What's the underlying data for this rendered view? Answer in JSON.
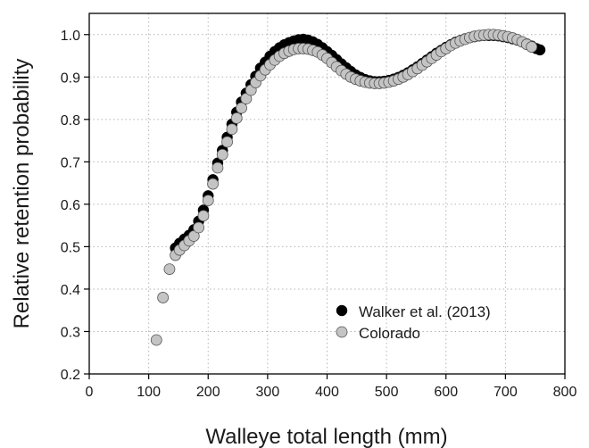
{
  "chart_data": {
    "type": "scatter",
    "xlabel": "Walleye total length (mm)",
    "ylabel": "Relative retention probability",
    "xlim": [
      0,
      800
    ],
    "ylim": [
      0.2,
      1.05
    ],
    "x_ticks": [
      "0",
      "100",
      "200",
      "300",
      "400",
      "500",
      "600",
      "700",
      "800"
    ],
    "y_ticks": [
      "0.2",
      "0.3",
      "0.4",
      "0.5",
      "0.6",
      "0.7",
      "0.8",
      "0.9",
      "1.0"
    ],
    "grid": true,
    "legend": "bottom-right",
    "series": [
      {
        "name": "Walker et al. (2013)",
        "color": "#000000",
        "x": [
          145,
          152,
          160,
          168,
          176,
          184,
          192,
          200,
          208,
          216,
          224,
          232,
          240,
          248,
          256,
          264,
          272,
          280,
          288,
          296,
          304,
          312,
          320,
          328,
          336,
          344,
          352,
          360,
          368,
          376,
          384,
          392,
          400,
          408,
          416,
          424,
          432,
          440,
          448,
          456,
          464,
          472,
          480,
          488,
          496,
          504,
          512,
          520,
          528,
          536,
          544,
          552,
          560,
          568,
          576,
          584,
          592,
          600,
          608,
          616,
          624,
          632,
          640,
          648,
          656,
          664,
          672,
          680,
          688,
          696,
          704,
          712,
          720,
          728,
          736,
          744,
          752,
          758
        ],
        "y": [
          0.497,
          0.508,
          0.518,
          0.527,
          0.54,
          0.56,
          0.586,
          0.62,
          0.658,
          0.697,
          0.727,
          0.758,
          0.789,
          0.817,
          0.841,
          0.862,
          0.882,
          0.902,
          0.921,
          0.935,
          0.949,
          0.96,
          0.969,
          0.976,
          0.981,
          0.985,
          0.988,
          0.989,
          0.987,
          0.983,
          0.977,
          0.969,
          0.96,
          0.951,
          0.941,
          0.931,
          0.922,
          0.913,
          0.905,
          0.899,
          0.894,
          0.891,
          0.889,
          0.889,
          0.89,
          0.892,
          0.895,
          0.899,
          0.904,
          0.91,
          0.917,
          0.924,
          0.932,
          0.94,
          0.948,
          0.956,
          0.963,
          0.97,
          0.976,
          0.982,
          0.986,
          0.99,
          0.993,
          0.995,
          0.997,
          0.998,
          0.998,
          0.998,
          0.997,
          0.995,
          0.993,
          0.99,
          0.987,
          0.983,
          0.978,
          0.973,
          0.967,
          0.964
        ]
      },
      {
        "name": "Colorado",
        "color": "#c4c4c4",
        "x": [
          113,
          124,
          135,
          145,
          152,
          160,
          168,
          176,
          184,
          192,
          200,
          208,
          216,
          224,
          232,
          240,
          248,
          256,
          264,
          272,
          280,
          288,
          296,
          304,
          312,
          320,
          328,
          336,
          344,
          352,
          360,
          368,
          376,
          384,
          392,
          400,
          408,
          416,
          424,
          432,
          440,
          448,
          456,
          464,
          472,
          480,
          488,
          496,
          504,
          512,
          520,
          528,
          536,
          544,
          552,
          560,
          568,
          576,
          584,
          592,
          600,
          608,
          616,
          624,
          632,
          640,
          648,
          656,
          664,
          672,
          680,
          688,
          696,
          704,
          712,
          720,
          728,
          736,
          744
        ],
        "y": [
          0.28,
          0.38,
          0.447,
          0.48,
          0.492,
          0.503,
          0.514,
          0.525,
          0.545,
          0.573,
          0.609,
          0.648,
          0.686,
          0.717,
          0.747,
          0.777,
          0.803,
          0.827,
          0.849,
          0.869,
          0.887,
          0.903,
          0.917,
          0.929,
          0.94,
          0.949,
          0.956,
          0.961,
          0.965,
          0.967,
          0.967,
          0.966,
          0.963,
          0.959,
          0.952,
          0.944,
          0.934,
          0.924,
          0.915,
          0.907,
          0.9,
          0.895,
          0.891,
          0.888,
          0.886,
          0.885,
          0.885,
          0.886,
          0.888,
          0.891,
          0.895,
          0.9,
          0.906,
          0.913,
          0.92,
          0.928,
          0.936,
          0.944,
          0.952,
          0.96,
          0.967,
          0.974,
          0.98,
          0.985,
          0.989,
          0.993,
          0.996,
          0.998,
          0.999,
          1.0,
          1.0,
          0.999,
          0.997,
          0.995,
          0.992,
          0.988,
          0.983,
          0.977,
          0.971
        ]
      }
    ]
  }
}
